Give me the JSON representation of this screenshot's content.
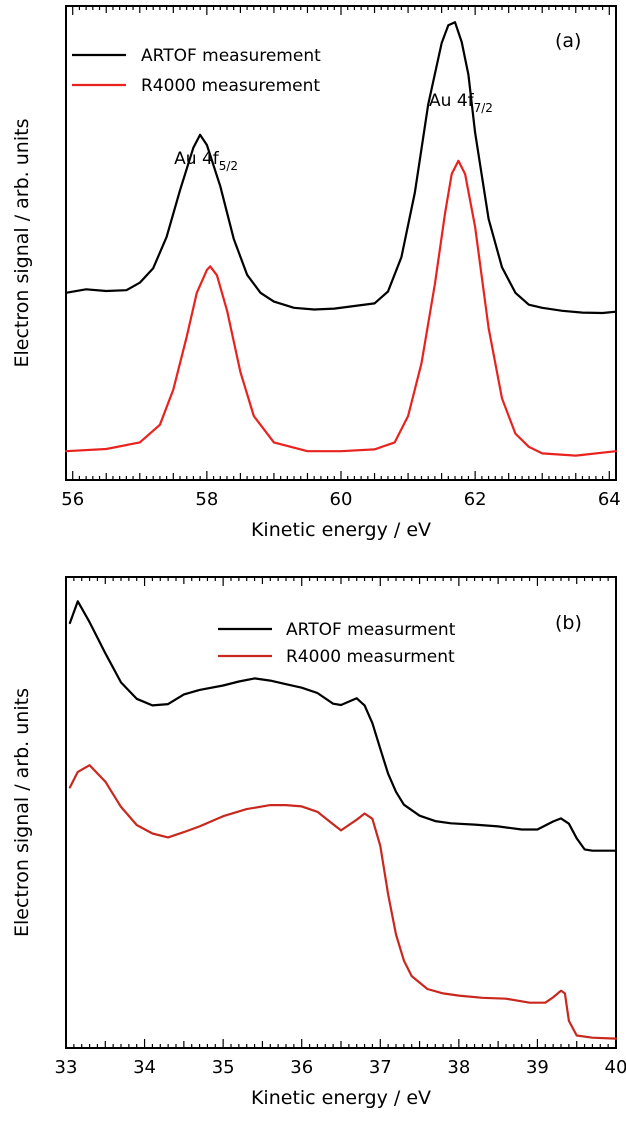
{
  "chart_data": [
    {
      "type": "line",
      "panel_label": "(a)",
      "xlabel": "Kinetic energy / eV",
      "ylabel": "Electron signal / arb. units",
      "xlim": [
        55.9,
        64.1
      ],
      "ylim": [
        0,
        1
      ],
      "x_ticks": [
        "56",
        "58",
        "60",
        "62",
        "64"
      ],
      "legend_position": "top-left",
      "annotations": [
        {
          "main": "Au 4f",
          "sub": "5/2",
          "x": 57.9
        },
        {
          "main": "Au 4f",
          "sub": "7/2",
          "x": 61.7
        }
      ],
      "series": [
        {
          "name": "ARTOF measurement",
          "color": "#000000",
          "x": [
            55.9,
            56.2,
            56.5,
            56.8,
            57.0,
            57.2,
            57.4,
            57.6,
            57.8,
            57.9,
            58.0,
            58.2,
            58.4,
            58.6,
            58.8,
            59.0,
            59.3,
            59.6,
            59.9,
            60.2,
            60.5,
            60.7,
            60.9,
            61.1,
            61.3,
            61.5,
            61.6,
            61.7,
            61.8,
            61.9,
            62.0,
            62.2,
            62.4,
            62.6,
            62.8,
            63.0,
            63.3,
            63.6,
            63.9,
            64.1
          ],
          "y": [
            0.38,
            0.388,
            0.384,
            0.386,
            0.403,
            0.436,
            0.507,
            0.613,
            0.71,
            0.739,
            0.716,
            0.622,
            0.503,
            0.421,
            0.38,
            0.36,
            0.346,
            0.342,
            0.344,
            0.35,
            0.356,
            0.383,
            0.461,
            0.607,
            0.808,
            0.947,
            0.988,
            0.995,
            0.95,
            0.876,
            0.744,
            0.548,
            0.438,
            0.38,
            0.353,
            0.346,
            0.339,
            0.335,
            0.334,
            0.337
          ]
        },
        {
          "name": "R4000 measurement",
          "color": "#e8231f",
          "x": [
            55.9,
            56.5,
            57.0,
            57.3,
            57.5,
            57.7,
            57.85,
            58.0,
            58.05,
            58.15,
            58.3,
            58.5,
            58.7,
            59.0,
            59.5,
            60.0,
            60.5,
            60.8,
            61.0,
            61.2,
            61.4,
            61.55,
            61.65,
            61.75,
            61.85,
            62.0,
            62.2,
            62.4,
            62.6,
            62.8,
            63.0,
            63.5,
            64.1
          ],
          "y": [
            0.02,
            0.025,
            0.04,
            0.08,
            0.16,
            0.28,
            0.38,
            0.432,
            0.44,
            0.42,
            0.34,
            0.2,
            0.1,
            0.04,
            0.02,
            0.02,
            0.024,
            0.04,
            0.1,
            0.22,
            0.4,
            0.56,
            0.65,
            0.68,
            0.65,
            0.53,
            0.3,
            0.14,
            0.06,
            0.03,
            0.015,
            0.01,
            0.02
          ]
        }
      ]
    },
    {
      "type": "line",
      "panel_label": "(b)",
      "xlabel": "Kinetic energy / eV",
      "ylabel": "Electron signal / arb. units",
      "xlim": [
        33.0,
        40.0
      ],
      "ylim": [
        0,
        1
      ],
      "x_ticks": [
        "33",
        "34",
        "35",
        "36",
        "37",
        "38",
        "39",
        "40"
      ],
      "legend_position": "top-right",
      "series": [
        {
          "name": "ARTOF measurment",
          "color": "#000000",
          "x": [
            33.05,
            33.15,
            33.3,
            33.5,
            33.7,
            33.9,
            34.1,
            34.3,
            34.5,
            34.7,
            35.0,
            35.2,
            35.4,
            35.6,
            35.8,
            36.0,
            36.2,
            36.4,
            36.5,
            36.7,
            36.8,
            36.9,
            37.0,
            37.1,
            37.2,
            37.3,
            37.5,
            37.7,
            37.9,
            38.2,
            38.5,
            38.8,
            39.0,
            39.2,
            39.3,
            39.4,
            39.5,
            39.6,
            39.7,
            40.0
          ],
          "y": [
            0.948,
            0.997,
            0.95,
            0.88,
            0.814,
            0.777,
            0.762,
            0.765,
            0.787,
            0.797,
            0.807,
            0.816,
            0.823,
            0.818,
            0.81,
            0.802,
            0.79,
            0.766,
            0.763,
            0.778,
            0.762,
            0.722,
            0.664,
            0.608,
            0.567,
            0.538,
            0.513,
            0.501,
            0.496,
            0.493,
            0.489,
            0.482,
            0.482,
            0.5,
            0.507,
            0.495,
            0.462,
            0.437,
            0.434,
            0.434
          ]
        },
        {
          "name": "R4000 measurment",
          "color": "#c8281e",
          "x": [
            33.05,
            33.15,
            33.3,
            33.5,
            33.7,
            33.9,
            34.1,
            34.3,
            34.5,
            34.7,
            35.0,
            35.3,
            35.6,
            35.8,
            36.0,
            36.2,
            36.4,
            36.5,
            36.7,
            36.8,
            36.9,
            37.0,
            37.1,
            37.2,
            37.3,
            37.4,
            37.6,
            37.8,
            38.0,
            38.3,
            38.6,
            38.9,
            39.1,
            39.2,
            39.3,
            39.35,
            39.4,
            39.5,
            39.7,
            40.0
          ],
          "y": [
            0.577,
            0.612,
            0.627,
            0.59,
            0.533,
            0.492,
            0.473,
            0.464,
            0.476,
            0.489,
            0.512,
            0.528,
            0.537,
            0.537,
            0.534,
            0.522,
            0.494,
            0.48,
            0.504,
            0.518,
            0.506,
            0.445,
            0.336,
            0.245,
            0.186,
            0.151,
            0.122,
            0.112,
            0.107,
            0.102,
            0.1,
            0.091,
            0.091,
            0.103,
            0.118,
            0.112,
            0.05,
            0.017,
            0.012,
            0.01
          ]
        }
      ]
    }
  ]
}
